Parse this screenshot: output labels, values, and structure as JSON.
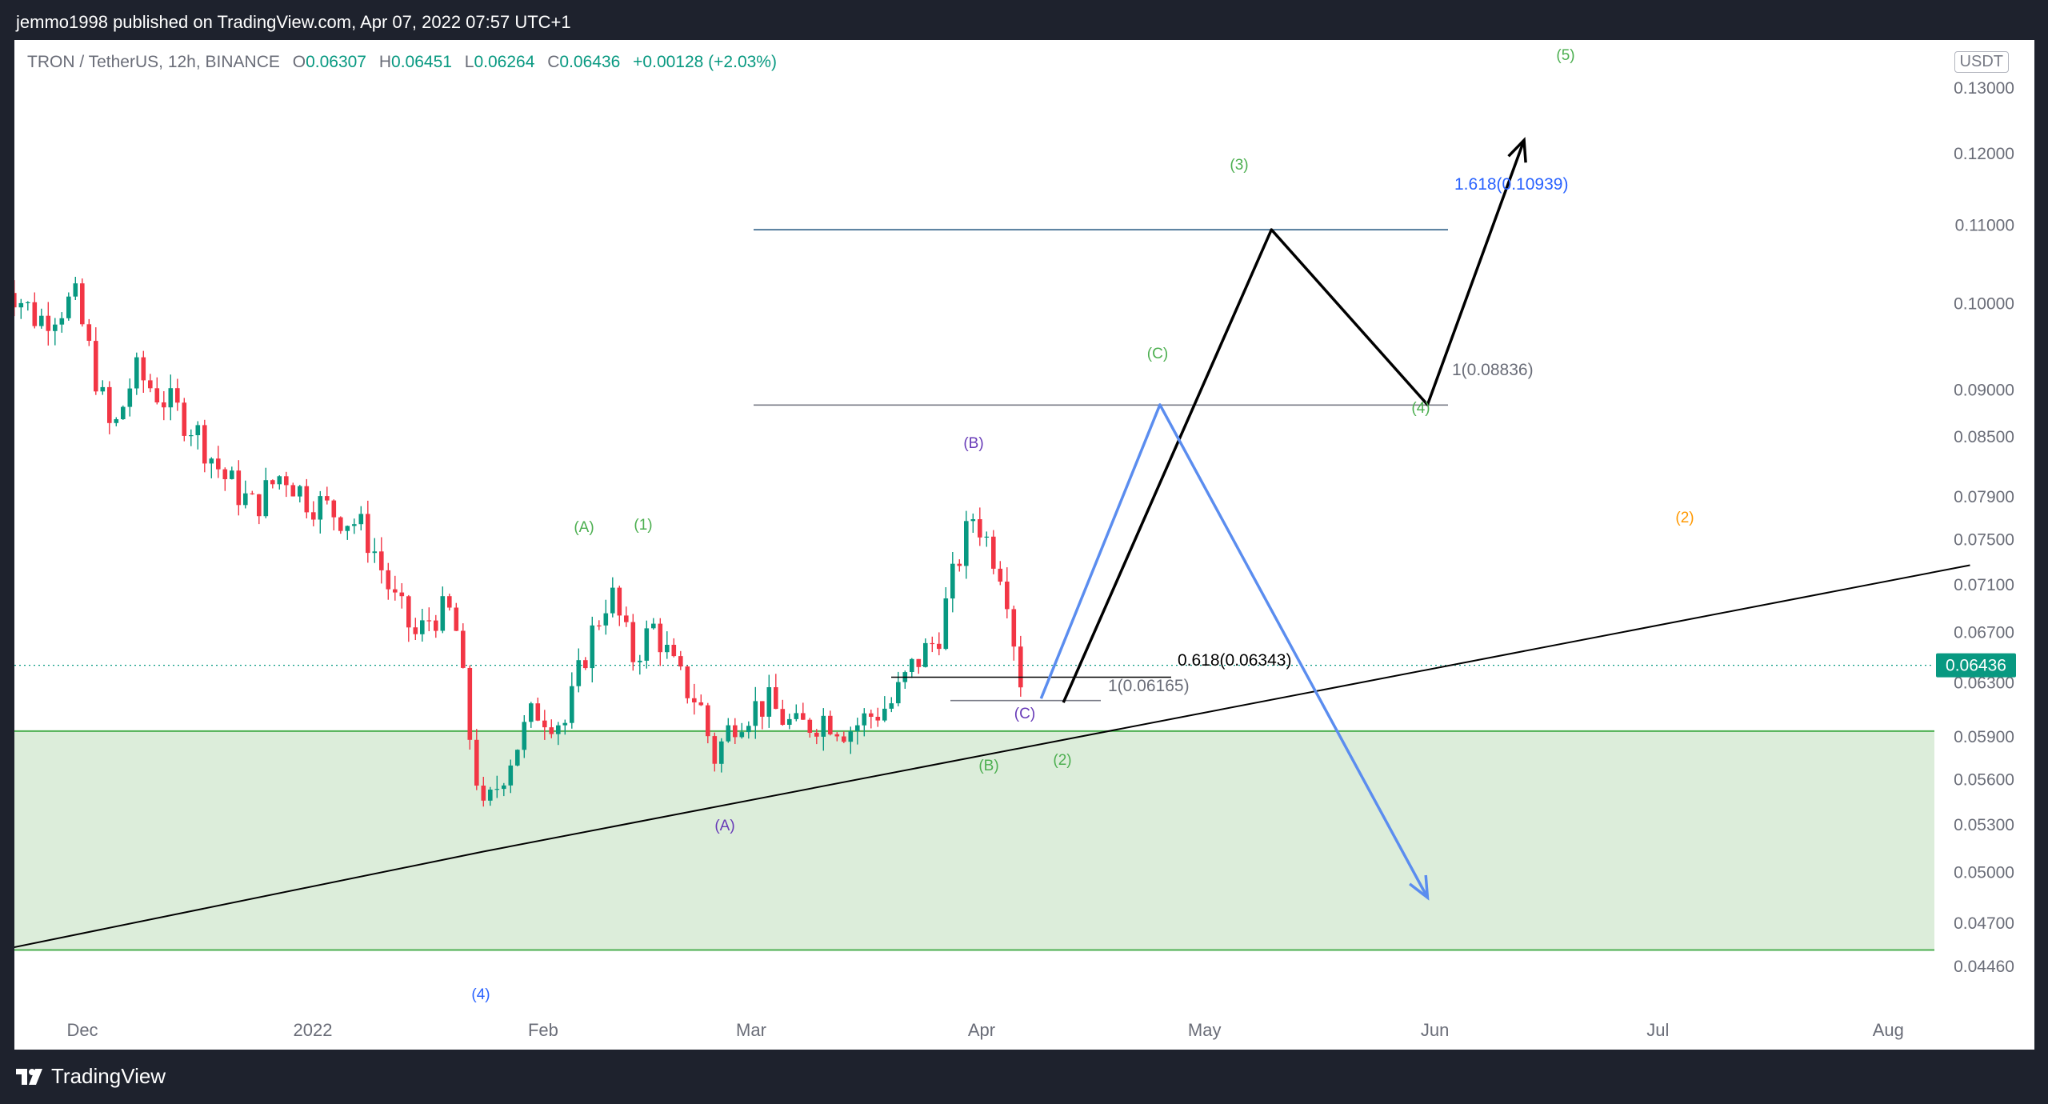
{
  "header": {
    "publish_line": "jemmo1998 published on TradingView.com, Apr 07, 2022 07:57 UTC+1"
  },
  "legend": {
    "symbol": "TRON / TetherUS, 12h, BINANCE",
    "o_label": "O",
    "o_value": "0.06307",
    "h_label": "H",
    "h_value": "0.06451",
    "l_label": "L",
    "l_value": "0.06264",
    "c_label": "C",
    "c_value": "0.06436",
    "change": "+0.00128 (+2.03%)"
  },
  "price_axis": {
    "unit": "USDT",
    "current_price": "0.06436",
    "ticks": [
      "0.13000",
      "0.12000",
      "0.11000",
      "0.10000",
      "0.09000",
      "0.08500",
      "0.07900",
      "0.07500",
      "0.07100",
      "0.06700",
      "0.06300",
      "0.05900",
      "0.05600",
      "0.05300",
      "0.05000",
      "0.04700",
      "0.04460"
    ]
  },
  "time_axis": {
    "ticks": [
      "Dec",
      "2022",
      "Feb",
      "Mar",
      "Apr",
      "May",
      "Jun",
      "Jul",
      "Aug"
    ]
  },
  "fib_labels": {
    "f1618_top": "1.618(0.10939)",
    "f1_top": "1(0.08836)",
    "f0618_low": "0.618(0.06343)",
    "f1_low": "1(0.06165)"
  },
  "wave_labels": {
    "green_A": "(A)",
    "green_1": "(1)",
    "green_3": "(3)",
    "green_5": "(5)",
    "green_C": "(C)",
    "green_4": "(4)",
    "green_B": "(B)",
    "green_2": "(2)",
    "purple_B": "(B)",
    "purple_C": "(C)",
    "purple_A": "(A)",
    "blue_4": "(4)",
    "orange_2": "(2)"
  },
  "colors": {
    "up_candle": "#089981",
    "down_candle": "#f23645",
    "support_zone": "#dcedda",
    "support_border": "#4caf50",
    "bull_path": "#000000",
    "bear_path": "#5b8def",
    "wave_green": "#4caf50",
    "wave_purple": "#673ab7",
    "wave_blue": "#2962ff",
    "wave_orange": "#ff9800",
    "fib_blue": "#2962ff"
  },
  "chart_data": {
    "type": "candlestick",
    "symbol": "TRON / TetherUS",
    "interval": "12h",
    "exchange": "BINANCE",
    "y_scale": "log",
    "ylim": [
      0.0446,
      0.13
    ],
    "x_range": [
      "2021-11-20",
      "2022-08-15"
    ],
    "close_series": [
      {
        "x": "2021-11-20",
        "close": 0.1035
      },
      {
        "x": "2021-11-25",
        "close": 0.098
      },
      {
        "x": "2021-11-30",
        "close": 0.1005
      },
      {
        "x": "2021-12-03",
        "close": 0.091
      },
      {
        "x": "2021-12-05",
        "close": 0.085
      },
      {
        "x": "2021-12-08",
        "close": 0.092
      },
      {
        "x": "2021-12-12",
        "close": 0.089
      },
      {
        "x": "2021-12-16",
        "close": 0.086
      },
      {
        "x": "2021-12-20",
        "close": 0.081
      },
      {
        "x": "2021-12-24",
        "close": 0.078
      },
      {
        "x": "2021-12-28",
        "close": 0.0815
      },
      {
        "x": "2021-12-31",
        "close": 0.079
      },
      {
        "x": "2022-01-04",
        "close": 0.0775
      },
      {
        "x": "2022-01-07",
        "close": 0.0765
      },
      {
        "x": "2022-01-09",
        "close": 0.0745
      },
      {
        "x": "2022-01-12",
        "close": 0.0695
      },
      {
        "x": "2022-01-15",
        "close": 0.0665
      },
      {
        "x": "2022-01-17",
        "close": 0.0685
      },
      {
        "x": "2022-01-20",
        "close": 0.0685
      },
      {
        "x": "2022-01-22",
        "close": 0.0595
      },
      {
        "x": "2022-01-24",
        "close": 0.0535
      },
      {
        "x": "2022-01-27",
        "close": 0.057
      },
      {
        "x": "2022-01-31",
        "close": 0.061
      },
      {
        "x": "2022-02-04",
        "close": 0.06
      },
      {
        "x": "2022-02-07",
        "close": 0.066
      },
      {
        "x": "2022-02-10",
        "close": 0.0705
      },
      {
        "x": "2022-02-13",
        "close": 0.065
      },
      {
        "x": "2022-02-16",
        "close": 0.0675
      },
      {
        "x": "2022-02-19",
        "close": 0.0635
      },
      {
        "x": "2022-02-22",
        "close": 0.0615
      },
      {
        "x": "2022-02-24",
        "close": 0.0575
      },
      {
        "x": "2022-02-27",
        "close": 0.0605
      },
      {
        "x": "2022-03-03",
        "close": 0.0615
      },
      {
        "x": "2022-03-07",
        "close": 0.0595
      },
      {
        "x": "2022-03-11",
        "close": 0.0605
      },
      {
        "x": "2022-03-14",
        "close": 0.0595
      },
      {
        "x": "2022-03-17",
        "close": 0.0605
      },
      {
        "x": "2022-03-20",
        "close": 0.0615
      },
      {
        "x": "2022-03-23",
        "close": 0.0645
      },
      {
        "x": "2022-03-26",
        "close": 0.0665
      },
      {
        "x": "2022-03-29",
        "close": 0.0735
      },
      {
        "x": "2022-03-31",
        "close": 0.0775
      },
      {
        "x": "2022-04-02",
        "close": 0.0745
      },
      {
        "x": "2022-04-04",
        "close": 0.072
      },
      {
        "x": "2022-04-05",
        "close": 0.0685
      },
      {
        "x": "2022-04-06",
        "close": 0.06307
      },
      {
        "x": "2022-04-07",
        "close": 0.06436
      }
    ],
    "last_candle": {
      "open": 0.06307,
      "high": 0.06451,
      "low": 0.06264,
      "close": 0.06436,
      "change": 0.00128,
      "change_pct": 2.03
    },
    "fib_levels": [
      {
        "label": "1.618(0.10939)",
        "price": 0.10939
      },
      {
        "label": "1(0.08836)",
        "price": 0.08836
      },
      {
        "label": "0.618(0.06343)",
        "price": 0.06343
      },
      {
        "label": "1(0.06165)",
        "price": 0.06165
      }
    ],
    "support_zone": {
      "top": 0.0594,
      "bottom": 0.0455
    },
    "trendline": [
      {
        "x": "2021-11-20",
        "price": 0.0455
      },
      {
        "x": "2022-01-24",
        "price": 0.0513
      },
      {
        "x": "2022-08-12",
        "price": 0.0727
      }
    ],
    "bull_projection": [
      {
        "x": "2022-04-12",
        "price": 0.0615
      },
      {
        "x": "2022-05-10",
        "price": 0.1094
      },
      {
        "x": "2022-05-31",
        "price": 0.0884
      },
      {
        "x": "2022-06-13",
        "price": 0.122
      }
    ],
    "bear_projection": [
      {
        "x": "2022-04-09",
        "price": 0.0618
      },
      {
        "x": "2022-04-25",
        "price": 0.0884
      },
      {
        "x": "2022-05-31",
        "price": 0.0485
      }
    ],
    "grid": false,
    "legend_position": "top-left"
  }
}
